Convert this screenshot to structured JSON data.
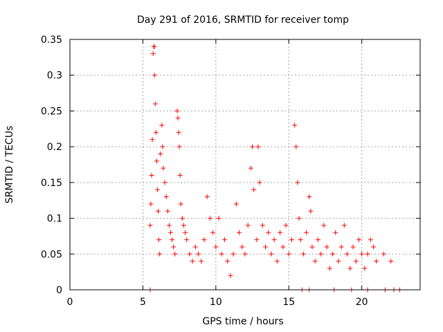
{
  "chart_data": {
    "type": "scatter",
    "title": "Day 291 of 2016, SRMTID for receiver tomp",
    "xlabel": "GPS time / hours",
    "ylabel": "SRMTID / TECUs",
    "xlim": [
      0,
      24
    ],
    "ylim": [
      0,
      0.35
    ],
    "xticks": [
      0,
      5,
      10,
      15,
      20
    ],
    "xtick_labels": [
      "0",
      "5",
      "10",
      "15",
      "20"
    ],
    "yticks": [
      0,
      0.05,
      0.1,
      0.15,
      0.2,
      0.25,
      0.3,
      0.35
    ],
    "ytick_labels": [
      "0",
      "0.05",
      "0.1",
      "0.15",
      "0.2",
      "0.25",
      "0.3",
      "0.35"
    ],
    "grid": true,
    "marker": "+",
    "colors": {
      "series": "#ff0000",
      "axes": "#000000",
      "grid": "#a0a0a0"
    },
    "series": [
      {
        "name": "SRMTID",
        "points": [
          [
            5.5,
            0.09
          ],
          [
            5.55,
            0.12
          ],
          [
            5.6,
            0.16
          ],
          [
            5.65,
            0.21
          ],
          [
            5.7,
            0.33
          ],
          [
            5.75,
            0.34
          ],
          [
            5.78,
            0.34
          ],
          [
            5.8,
            0.3
          ],
          [
            5.85,
            0.26
          ],
          [
            5.9,
            0.22
          ],
          [
            5.95,
            0.18
          ],
          [
            6.0,
            0.14
          ],
          [
            6.05,
            0.11
          ],
          [
            6.1,
            0.07
          ],
          [
            6.15,
            0.05
          ],
          [
            6.2,
            0.19
          ],
          [
            6.3,
            0.23
          ],
          [
            6.35,
            0.2
          ],
          [
            6.4,
            0.17
          ],
          [
            6.5,
            0.15
          ],
          [
            6.6,
            0.13
          ],
          [
            6.7,
            0.11
          ],
          [
            6.8,
            0.09
          ],
          [
            6.9,
            0.08
          ],
          [
            7.0,
            0.07
          ],
          [
            7.1,
            0.06
          ],
          [
            7.2,
            0.05
          ],
          [
            7.35,
            0.25
          ],
          [
            7.4,
            0.24
          ],
          [
            7.45,
            0.22
          ],
          [
            7.5,
            0.2
          ],
          [
            7.55,
            0.16
          ],
          [
            7.6,
            0.12
          ],
          [
            7.7,
            0.1
          ],
          [
            7.8,
            0.09
          ],
          [
            7.9,
            0.08
          ],
          [
            8.0,
            0.07
          ],
          [
            8.2,
            0.05
          ],
          [
            8.4,
            0.04
          ],
          [
            8.6,
            0.06
          ],
          [
            8.8,
            0.05
          ],
          [
            9.0,
            0.04
          ],
          [
            9.2,
            0.07
          ],
          [
            9.4,
            0.13
          ],
          [
            9.6,
            0.1
          ],
          [
            9.8,
            0.08
          ],
          [
            10.0,
            0.06
          ],
          [
            10.2,
            0.1
          ],
          [
            10.4,
            0.05
          ],
          [
            10.6,
            0.07
          ],
          [
            10.8,
            0.04
          ],
          [
            11.0,
            0.02
          ],
          [
            11.2,
            0.05
          ],
          [
            11.4,
            0.12
          ],
          [
            11.6,
            0.08
          ],
          [
            11.8,
            0.06
          ],
          [
            12.0,
            0.05
          ],
          [
            12.2,
            0.09
          ],
          [
            12.4,
            0.17
          ],
          [
            12.5,
            0.2
          ],
          [
            12.6,
            0.14
          ],
          [
            12.8,
            0.07
          ],
          [
            12.9,
            0.2
          ],
          [
            13.0,
            0.15
          ],
          [
            13.2,
            0.09
          ],
          [
            13.4,
            0.06
          ],
          [
            13.6,
            0.08
          ],
          [
            13.8,
            0.05
          ],
          [
            14.0,
            0.07
          ],
          [
            14.2,
            0.04
          ],
          [
            14.4,
            0.08
          ],
          [
            14.6,
            0.06
          ],
          [
            14.8,
            0.09
          ],
          [
            15.0,
            0.05
          ],
          [
            15.2,
            0.07
          ],
          [
            15.4,
            0.23
          ],
          [
            15.5,
            0.2
          ],
          [
            15.6,
            0.15
          ],
          [
            15.7,
            0.1
          ],
          [
            15.8,
            0.07
          ],
          [
            16.0,
            0.05
          ],
          [
            16.2,
            0.08
          ],
          [
            16.4,
            0.13
          ],
          [
            16.5,
            0.11
          ],
          [
            16.6,
            0.06
          ],
          [
            16.8,
            0.04
          ],
          [
            17.0,
            0.07
          ],
          [
            17.2,
            0.05
          ],
          [
            17.4,
            0.09
          ],
          [
            17.6,
            0.06
          ],
          [
            17.8,
            0.03
          ],
          [
            18.0,
            0.05
          ],
          [
            18.2,
            0.08
          ],
          [
            18.4,
            0.04
          ],
          [
            18.6,
            0.06
          ],
          [
            18.8,
            0.09
          ],
          [
            19.0,
            0.05
          ],
          [
            19.2,
            0.03
          ],
          [
            19.4,
            0.06
          ],
          [
            19.6,
            0.04
          ],
          [
            19.8,
            0.07
          ],
          [
            20.0,
            0.05
          ],
          [
            20.2,
            0.03
          ],
          [
            20.4,
            0.05
          ],
          [
            20.6,
            0.07
          ],
          [
            20.8,
            0.06
          ],
          [
            21.0,
            0.04
          ],
          [
            21.5,
            0.05
          ],
          [
            22.0,
            0.04
          ],
          [
            5.5,
            0.0
          ],
          [
            15.9,
            0.0
          ],
          [
            16.4,
            0.0
          ],
          [
            18.1,
            0.0
          ],
          [
            19.3,
            0.0
          ],
          [
            20.4,
            0.0
          ],
          [
            21.6,
            0.0
          ],
          [
            22.2,
            0.0
          ],
          [
            22.6,
            0.0
          ]
        ]
      }
    ]
  }
}
